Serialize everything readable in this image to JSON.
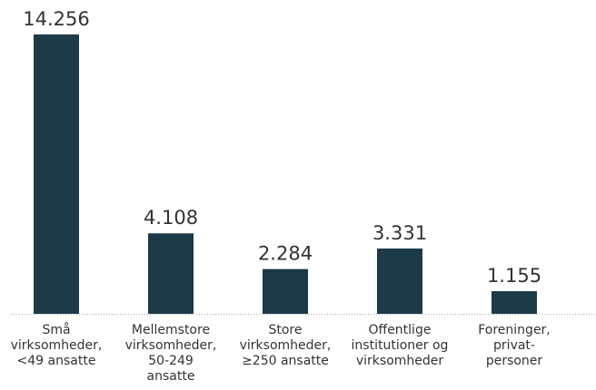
{
  "chart_data": {
    "type": "bar",
    "categories": [
      "Små\nvirksomheder,\n<49 ansatte",
      "Mellemstore\nvirksomheder,\n50-249\nansatte",
      "Store\nvirksomheder,\n≥250 ansatte",
      "Offentlige\ninstitutioner og\nvirksomheder",
      "Foreninger,\nprivat-\npersoner"
    ],
    "values": [
      14256,
      4108,
      2284,
      3331,
      1155
    ],
    "value_labels": [
      "14.256",
      "4.108",
      "2.284",
      "3.331",
      "1.155"
    ],
    "color": "#1c3a48"
  }
}
